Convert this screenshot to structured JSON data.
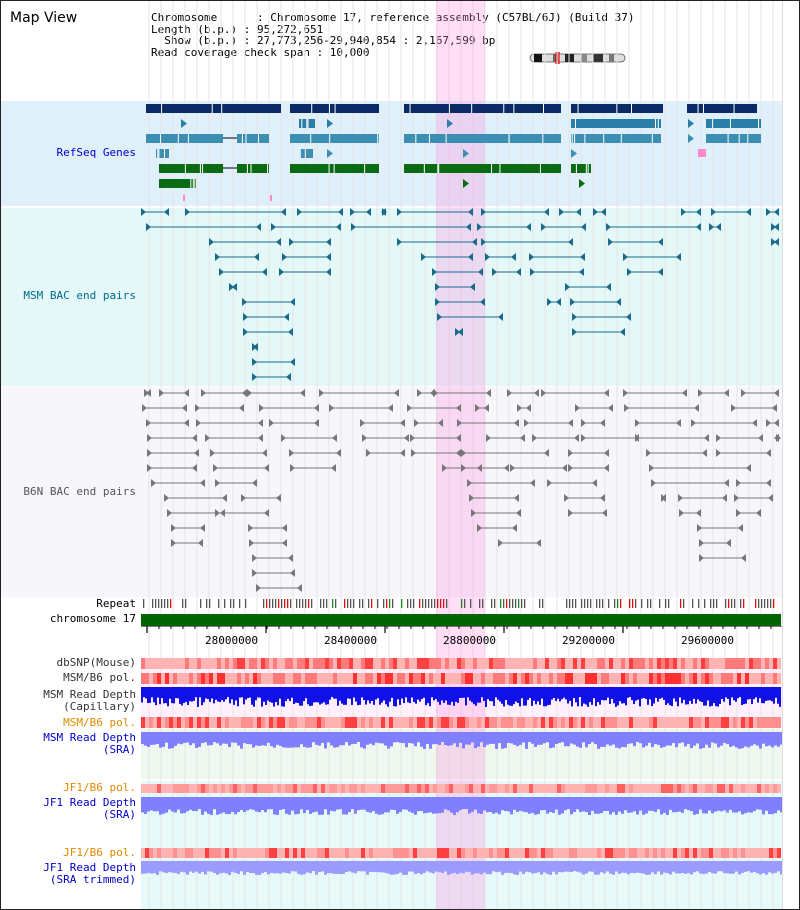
{
  "title": "Map View",
  "info": {
    "chromosome": "Chromosome      : Chromosome 17, reference assembly (C57BL/6J) (Build 37)",
    "length": "Length (b.p.) : 95,272,651",
    "show": "  Show (b.p.) : 27,773,256-29,940,854 : 2,167,599 bp",
    "coverage": "Read coverage check span : 10,000"
  },
  "tracks": {
    "refseq": "RefSeq Genes",
    "msm_bac": "MSM BAC end pairs",
    "b6n_bac": "B6N BAC end pairs",
    "repeat": "Repeat",
    "chrom": "chromosome 17",
    "dbsnp": "dbSNP(Mouse)",
    "msm_b6_pol1": "MSM/B6 pol.",
    "msm_depth_cap": "MSM Read Depth\n(Capillary)",
    "msm_b6_pol2": "MSM/B6 pol.",
    "msm_depth_sra": "MSM Read Depth\n(SRA)",
    "jf1_b6_pol1": "JF1/B6 pol.",
    "jf1_depth_sra": "JF1 Read Depth\n(SRA)",
    "jf1_b6_pol2": "JF1/B6 pol.",
    "jf1_depth_trim": "JF1 Read Depth\n(SRA trimmed)"
  },
  "axis": {
    "ticks": [
      "28000000",
      "28400000",
      "28800000",
      "29200000",
      "29600000"
    ]
  },
  "colors": {
    "label_blue": "#0000cc",
    "label_teal": "#006b8f",
    "label_orange": "#e08a00",
    "highlight": "#ff88dd"
  }
}
